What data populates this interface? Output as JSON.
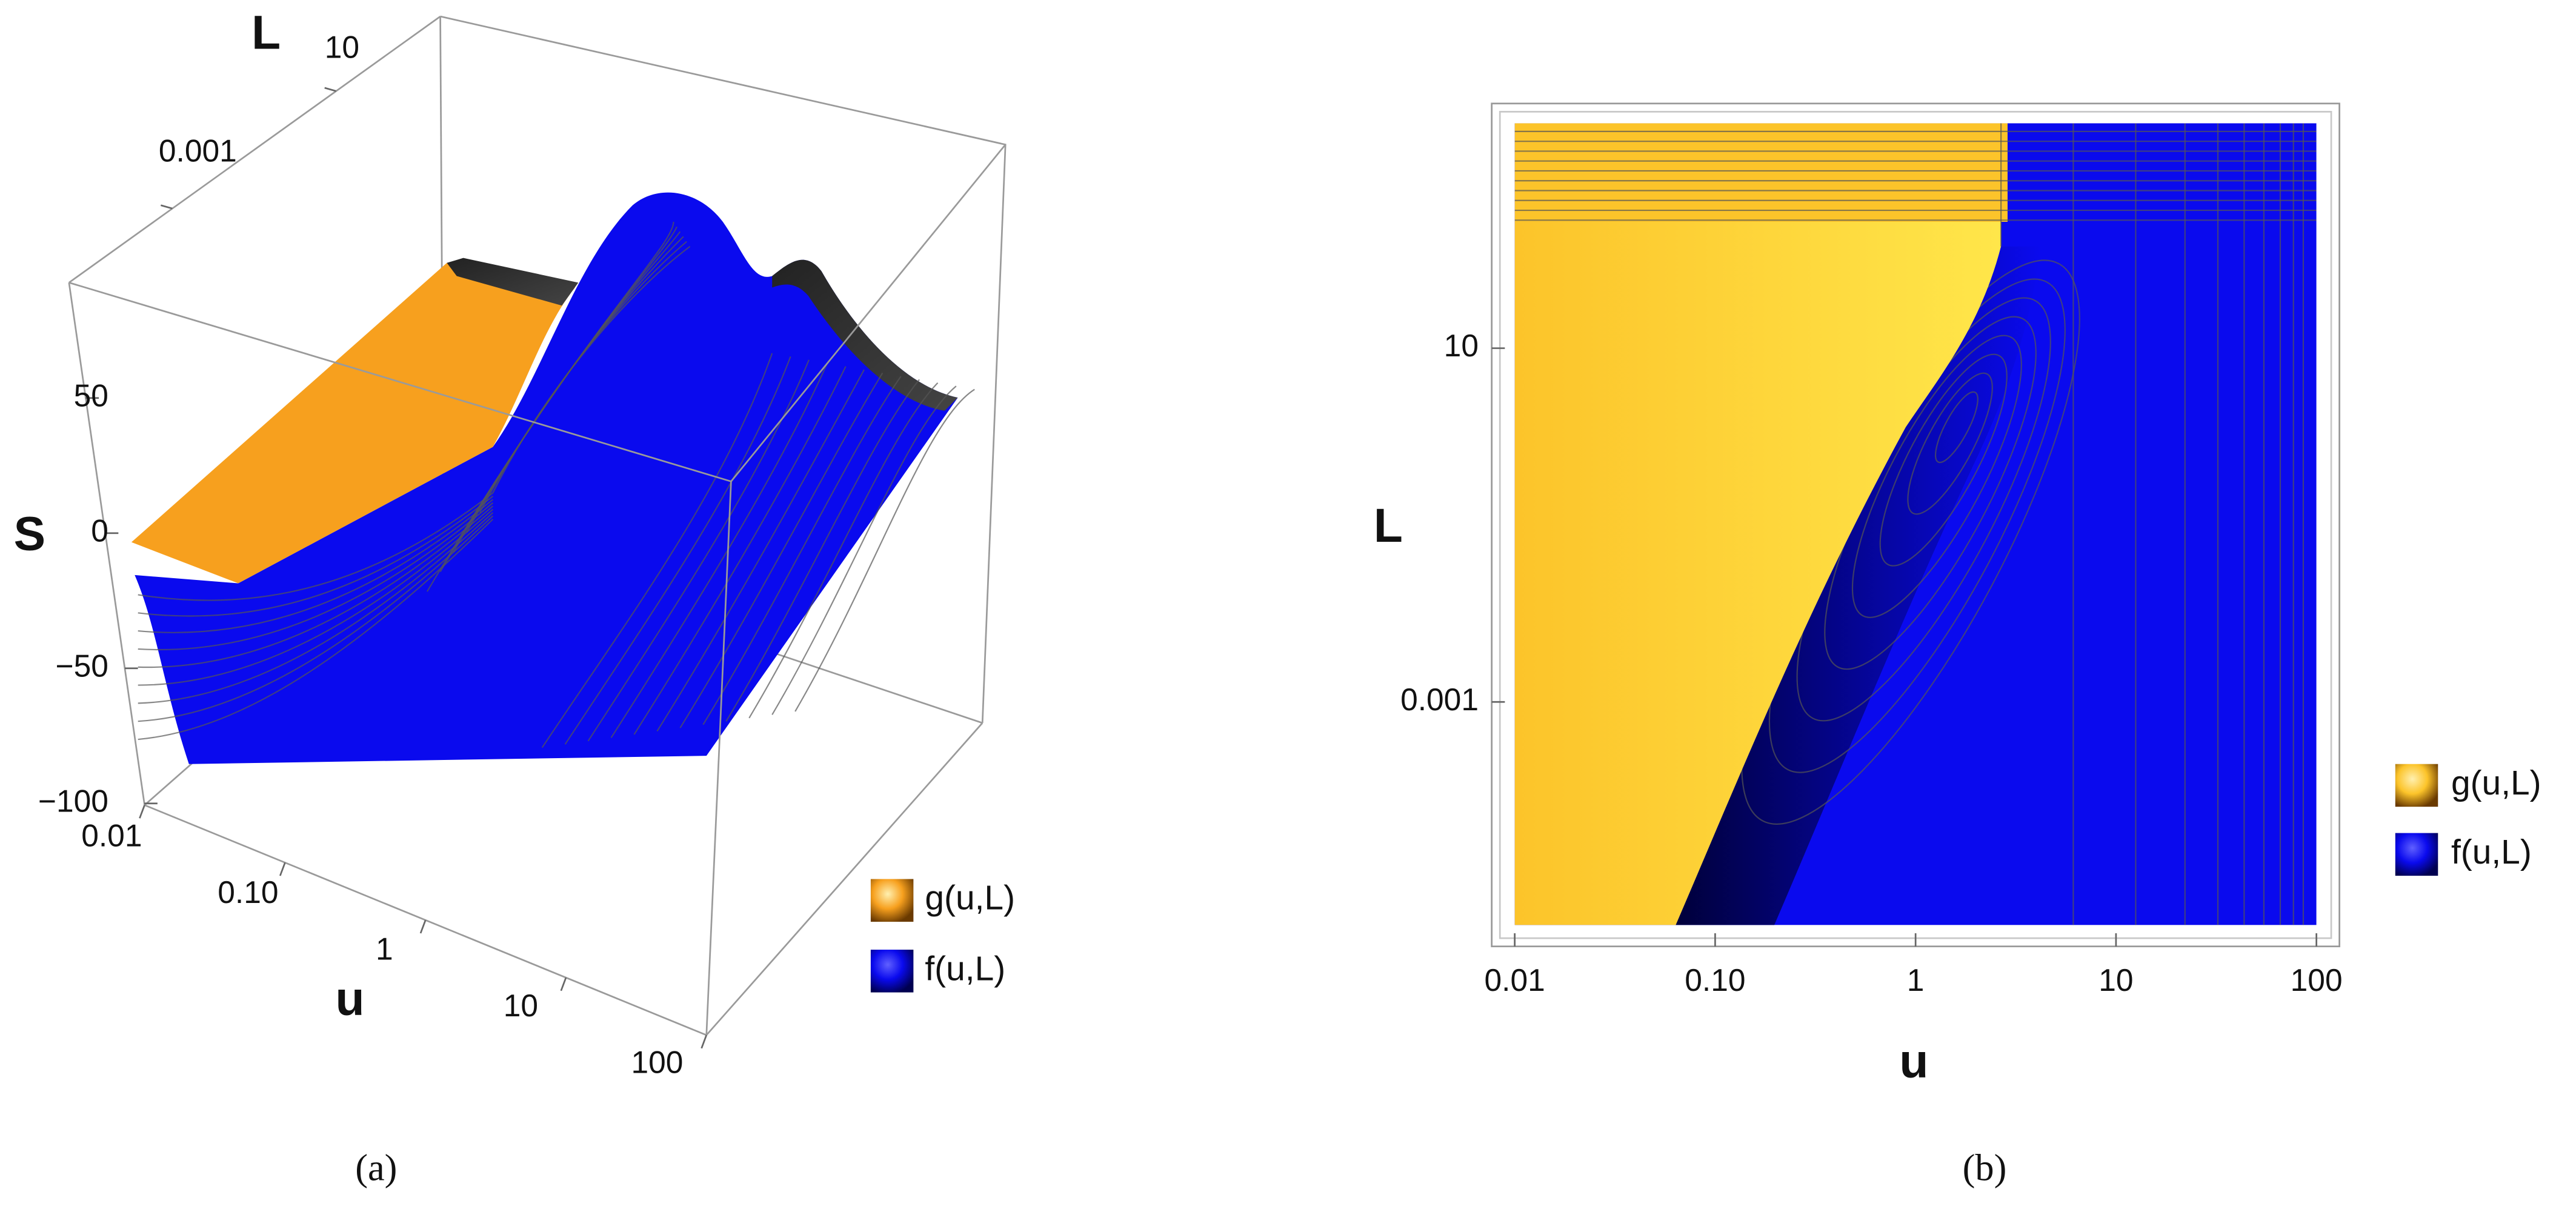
{
  "chart_data": [
    {
      "type": "surface3d",
      "xlabel": "u",
      "ylabel": "L",
      "zlabel": "S",
      "xscale": "log",
      "xlim": [
        0.01,
        100
      ],
      "xticks": [
        0.01,
        {
          "value": 0.1,
          "label": "0.10"
        },
        1,
        10,
        100
      ],
      "yscale": "log",
      "ylim": [
        3e-06,
        3500
      ],
      "yticks": [
        0.001,
        10
      ],
      "zlim": [
        -100,
        100
      ],
      "zticks": [
        {
          "value": -100,
          "label": "−100"
        },
        {
          "value": -50,
          "label": "−50"
        },
        0,
        50
      ],
      "series": [
        {
          "name": "g(u,L)",
          "color": "#f7a01e"
        },
        {
          "name": "f(u,L)",
          "color": "#0a0aee"
        }
      ],
      "caption": "(a)"
    },
    {
      "type": "contour",
      "xlabel": "u",
      "ylabel": "L",
      "xscale": "log",
      "xlim": [
        0.01,
        100
      ],
      "xticks": [
        0.01,
        {
          "value": 0.1,
          "label": "0.10"
        },
        1,
        10,
        100
      ],
      "yscale": "log",
      "ylim": [
        3e-06,
        3500
      ],
      "yticks": [
        0.001,
        10
      ],
      "series": [
        {
          "name": "g(u,L)",
          "color": "#fcc42a"
        },
        {
          "name": "f(u,L)",
          "color": "#0a0aee"
        }
      ],
      "caption": "(b)"
    }
  ]
}
